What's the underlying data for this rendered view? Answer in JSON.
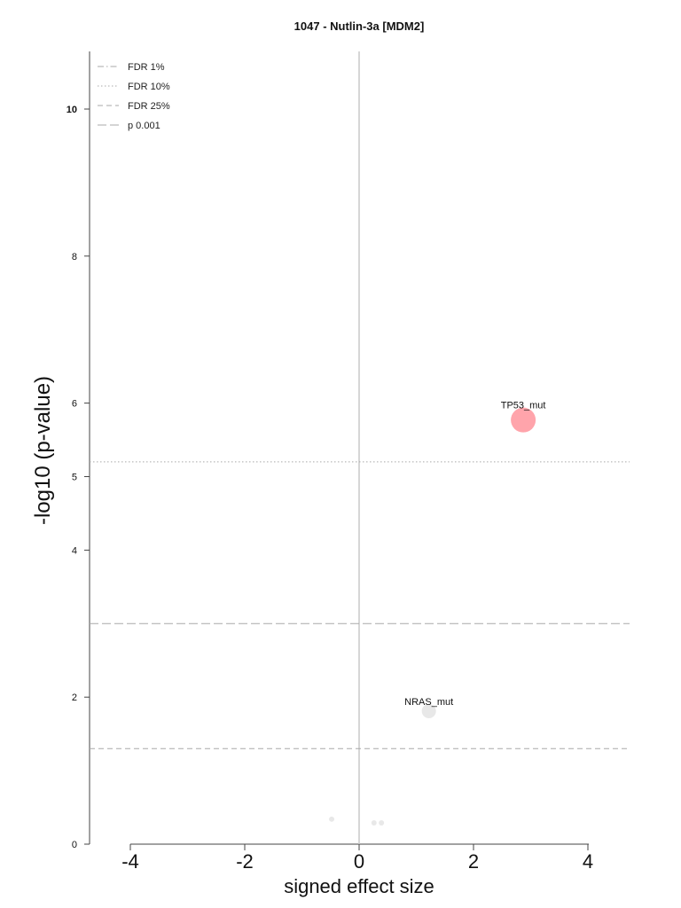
{
  "chart_data": {
    "type": "scatter",
    "title": "1047 - Nutlin-3a [MDM2]",
    "xlabel": "signed effect size",
    "ylabel": "-log10 (p-value)",
    "xlim": [
      -4.7,
      4.7
    ],
    "ylim": [
      0,
      10.8
    ],
    "xticks": [
      "-4",
      "-2",
      "0",
      "2",
      "4"
    ],
    "yticks": [
      "0",
      "2",
      "4",
      "5",
      "6",
      "8",
      "10"
    ],
    "legend_position": "top-left",
    "legend": [
      {
        "label": "FDR 1%",
        "style": "dashdot"
      },
      {
        "label": "FDR 10%",
        "style": "dotted"
      },
      {
        "label": "FDR 25%",
        "style": "dashed"
      },
      {
        "label": "p 0.001",
        "style": "longdash"
      }
    ],
    "threshold_lines": [
      {
        "name": "FDR 10%",
        "y": 5.2,
        "style": "dotted"
      },
      {
        "name": "p 0.001",
        "y": 3.0,
        "style": "longdash"
      },
      {
        "name": "FDR 25%",
        "y": 1.3,
        "style": "dashed"
      }
    ],
    "points": [
      {
        "x": 2.87,
        "y": 5.77,
        "label": "TP53_mut",
        "color": "#ff9aa2",
        "size": 14
      },
      {
        "x": 1.22,
        "y": 1.81,
        "label": "NRAS_mut",
        "color": "#e6e6e6",
        "size": 8
      },
      {
        "x": -0.48,
        "y": 0.34,
        "label": "",
        "color": "#e6e6e6",
        "size": 3
      },
      {
        "x": 0.26,
        "y": 0.29,
        "label": "",
        "color": "#e6e6e6",
        "size": 3
      },
      {
        "x": 0.39,
        "y": 0.29,
        "label": "",
        "color": "#e6e6e6",
        "size": 3
      }
    ],
    "grid": false
  }
}
